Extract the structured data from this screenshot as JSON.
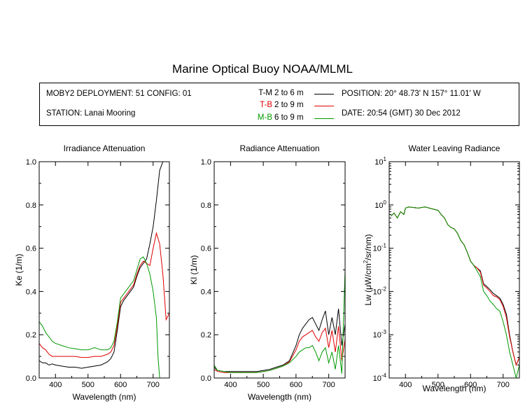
{
  "title": "Marine Optical Buoy NOAA/MLML",
  "info": {
    "deployment": "MOBY2 DEPLOYMENT: 51 CONFIG: 01",
    "station": "STATION: Lanai Mooring",
    "position": "POSITION: 20° 48.73' N   157° 11.01' W",
    "date": "DATE: 20:54 (GMT) 30 Dec 2012",
    "legend": [
      {
        "code": "T-M",
        "range": "2 to 6  m",
        "color": "#000000"
      },
      {
        "code": "T-B",
        "range": "2 to 9  m",
        "color": "#e00000"
      },
      {
        "code": "M-B",
        "range": "6 to 9  m",
        "color": "#009900"
      }
    ]
  },
  "chart_data": [
    {
      "type": "line",
      "title": "Irradiance Attenuation",
      "xlabel": "Wavelength (nm)",
      "ylabel": "Ke  (1/m)",
      "xlim": [
        350,
        750
      ],
      "ylim": [
        0,
        1.0
      ],
      "xticks": [
        400,
        500,
        600,
        700
      ],
      "yticks": [
        0.0,
        0.2,
        0.4,
        0.6,
        0.8,
        1.0
      ],
      "ytick_labels": [
        "0.0",
        "0.2",
        "0.4",
        "0.6",
        "0.8",
        "1.0"
      ],
      "series": [
        {
          "name": "T-M",
          "color": "#000000",
          "x": [
            350,
            360,
            370,
            380,
            390,
            400,
            420,
            440,
            460,
            480,
            500,
            520,
            540,
            560,
            570,
            580,
            590,
            600,
            610,
            620,
            630,
            640,
            650,
            660,
            670,
            680,
            690,
            700,
            710,
            720,
            730,
            740,
            750
          ],
          "y": [
            0.08,
            0.07,
            0.07,
            0.06,
            0.065,
            0.06,
            0.055,
            0.05,
            0.05,
            0.045,
            0.05,
            0.055,
            0.06,
            0.075,
            0.09,
            0.12,
            0.22,
            0.33,
            0.36,
            0.38,
            0.4,
            0.42,
            0.47,
            0.51,
            0.53,
            0.55,
            0.62,
            0.7,
            0.82,
            0.96,
            1.0,
            1.0,
            1.0
          ]
        },
        {
          "name": "T-B",
          "color": "#e00000",
          "x": [
            350,
            360,
            370,
            380,
            390,
            400,
            420,
            440,
            460,
            480,
            500,
            520,
            540,
            560,
            570,
            580,
            590,
            600,
            610,
            620,
            630,
            640,
            650,
            660,
            670,
            680,
            690,
            700,
            710,
            720,
            730,
            740,
            750
          ],
          "y": [
            0.16,
            0.14,
            0.13,
            0.11,
            0.1,
            0.1,
            0.1,
            0.1,
            0.1,
            0.095,
            0.095,
            0.1,
            0.1,
            0.11,
            0.12,
            0.15,
            0.24,
            0.35,
            0.37,
            0.39,
            0.41,
            0.43,
            0.48,
            0.52,
            0.54,
            0.53,
            0.52,
            0.6,
            0.67,
            0.62,
            0.48,
            0.27,
            0.3
          ]
        },
        {
          "name": "M-B",
          "color": "#009900",
          "x": [
            350,
            360,
            370,
            380,
            390,
            400,
            420,
            440,
            460,
            480,
            500,
            520,
            540,
            560,
            570,
            580,
            590,
            600,
            610,
            620,
            630,
            640,
            650,
            660,
            670,
            680,
            690,
            700,
            710,
            715,
            720
          ],
          "y": [
            0.26,
            0.24,
            0.21,
            0.19,
            0.17,
            0.16,
            0.15,
            0.14,
            0.135,
            0.13,
            0.13,
            0.14,
            0.13,
            0.13,
            0.14,
            0.17,
            0.26,
            0.37,
            0.39,
            0.41,
            0.43,
            0.45,
            0.5,
            0.55,
            0.56,
            0.53,
            0.48,
            0.4,
            0.28,
            0.1,
            0.0
          ]
        }
      ]
    },
    {
      "type": "line",
      "title": "Radiance Attenuation",
      "xlabel": "Wavelength (nm)",
      "ylabel": "Kl  (1/m)",
      "xlim": [
        350,
        750
      ],
      "ylim": [
        0,
        1.0
      ],
      "xticks": [
        400,
        500,
        600,
        700
      ],
      "yticks": [
        0.0,
        0.2,
        0.4,
        0.6,
        0.8,
        1.0
      ],
      "ytick_labels": [
        "0.0",
        "0.2",
        "0.4",
        "0.6",
        "0.8",
        "1.0"
      ],
      "series": [
        {
          "name": "T-M",
          "color": "#000000",
          "x": [
            350,
            360,
            380,
            400,
            420,
            440,
            460,
            480,
            500,
            520,
            540,
            560,
            580,
            600,
            610,
            620,
            630,
            640,
            650,
            660,
            670,
            680,
            690,
            700,
            710,
            720,
            730,
            740,
            750
          ],
          "y": [
            0.05,
            0.035,
            0.03,
            0.03,
            0.03,
            0.03,
            0.03,
            0.03,
            0.035,
            0.04,
            0.05,
            0.06,
            0.08,
            0.15,
            0.2,
            0.23,
            0.25,
            0.27,
            0.28,
            0.25,
            0.22,
            0.27,
            0.31,
            0.2,
            0.28,
            0.2,
            0.32,
            0.15,
            0.25
          ]
        },
        {
          "name": "T-B",
          "color": "#e00000",
          "x": [
            350,
            360,
            380,
            400,
            420,
            440,
            460,
            480,
            500,
            520,
            540,
            560,
            580,
            600,
            610,
            620,
            630,
            640,
            650,
            660,
            670,
            680,
            690,
            700,
            710,
            720,
            730,
            740,
            750
          ],
          "y": [
            0.04,
            0.03,
            0.025,
            0.025,
            0.025,
            0.025,
            0.025,
            0.025,
            0.03,
            0.035,
            0.045,
            0.055,
            0.075,
            0.13,
            0.17,
            0.19,
            0.2,
            0.21,
            0.22,
            0.19,
            0.17,
            0.21,
            0.23,
            0.14,
            0.22,
            0.12,
            0.24,
            0.08,
            0.18
          ]
        },
        {
          "name": "M-B",
          "color": "#009900",
          "x": [
            350,
            360,
            380,
            400,
            420,
            440,
            460,
            480,
            500,
            520,
            540,
            560,
            580,
            600,
            610,
            620,
            630,
            640,
            650,
            660,
            670,
            680,
            690,
            700,
            710,
            720,
            730,
            740,
            750
          ],
          "y": [
            0.06,
            0.035,
            0.03,
            0.025,
            0.025,
            0.025,
            0.025,
            0.025,
            0.03,
            0.035,
            0.045,
            0.055,
            0.07,
            0.1,
            0.12,
            0.13,
            0.14,
            0.14,
            0.15,
            0.12,
            0.08,
            0.12,
            0.14,
            0.07,
            0.12,
            0.04,
            0.15,
            0.02,
            0.5
          ]
        }
      ]
    },
    {
      "type": "line",
      "title": "Water Leaving Radiance",
      "xlabel": "Wavelength (nm)",
      "ylabel": "Lw  (μW/cm²/sr/nm)",
      "xlim": [
        350,
        750
      ],
      "ylim": [
        0.0001,
        10
      ],
      "yscale": "log",
      "xticks": [
        400,
        500,
        600,
        700
      ],
      "yticks": [
        10,
        1,
        0.1,
        0.01,
        0.001,
        0.0001
      ],
      "ytick_labels": [
        [
          "10",
          "1"
        ],
        [
          "10",
          "0"
        ],
        [
          "10",
          "-1"
        ],
        [
          "10",
          "-2"
        ],
        [
          "10",
          "-3"
        ],
        [
          "10",
          "-4"
        ]
      ],
      "series": [
        {
          "name": "T-M",
          "color": "#000000",
          "x": [
            355,
            365,
            375,
            385,
            395,
            400,
            410,
            420,
            440,
            460,
            480,
            500,
            510,
            520,
            530,
            540,
            550,
            560,
            570,
            580,
            590,
            600,
            610,
            620,
            630,
            640,
            650,
            660,
            670,
            680,
            690,
            700,
            710,
            720,
            730,
            740,
            750
          ],
          "y": [
            0.55,
            0.65,
            0.5,
            0.7,
            0.6,
            0.85,
            0.9,
            0.88,
            0.85,
            0.9,
            0.82,
            0.75,
            0.6,
            0.5,
            0.35,
            0.3,
            0.28,
            0.22,
            0.15,
            0.12,
            0.08,
            0.05,
            0.04,
            0.035,
            0.03,
            0.015,
            0.013,
            0.011,
            0.009,
            0.008,
            0.007,
            0.005,
            0.003,
            0.001,
            0.0004,
            0.0002,
            0.0003
          ]
        },
        {
          "name": "T-B",
          "color": "#e00000",
          "x": [
            355,
            365,
            375,
            385,
            395,
            400,
            410,
            420,
            440,
            460,
            480,
            500,
            510,
            520,
            530,
            540,
            550,
            560,
            570,
            580,
            590,
            600,
            610,
            620,
            630,
            640,
            650,
            660,
            670,
            680,
            690,
            700,
            710,
            720,
            730,
            740,
            750
          ],
          "y": [
            0.55,
            0.65,
            0.5,
            0.7,
            0.6,
            0.85,
            0.9,
            0.88,
            0.85,
            0.9,
            0.82,
            0.75,
            0.6,
            0.5,
            0.35,
            0.3,
            0.28,
            0.22,
            0.15,
            0.12,
            0.08,
            0.05,
            0.04,
            0.035,
            0.028,
            0.014,
            0.012,
            0.01,
            0.008,
            0.0075,
            0.0065,
            0.0045,
            0.0025,
            0.0009,
            0.0004,
            0.0002,
            0.0003
          ]
        },
        {
          "name": "M-B",
          "color": "#009900",
          "x": [
            355,
            365,
            375,
            385,
            395,
            400,
            410,
            420,
            440,
            460,
            480,
            500,
            510,
            520,
            530,
            540,
            550,
            560,
            570,
            580,
            590,
            600,
            610,
            620,
            630,
            640,
            650,
            660,
            670,
            680,
            690,
            700,
            710,
            720,
            730,
            740,
            750
          ],
          "y": [
            0.55,
            0.65,
            0.5,
            0.7,
            0.6,
            0.85,
            0.9,
            0.88,
            0.85,
            0.9,
            0.82,
            0.75,
            0.6,
            0.5,
            0.35,
            0.3,
            0.28,
            0.22,
            0.15,
            0.12,
            0.08,
            0.05,
            0.04,
            0.03,
            0.022,
            0.01,
            0.008,
            0.006,
            0.005,
            0.004,
            0.0035,
            0.002,
            0.001,
            0.0004,
            0.0002,
            0.0001,
            0.0002
          ]
        }
      ]
    }
  ]
}
